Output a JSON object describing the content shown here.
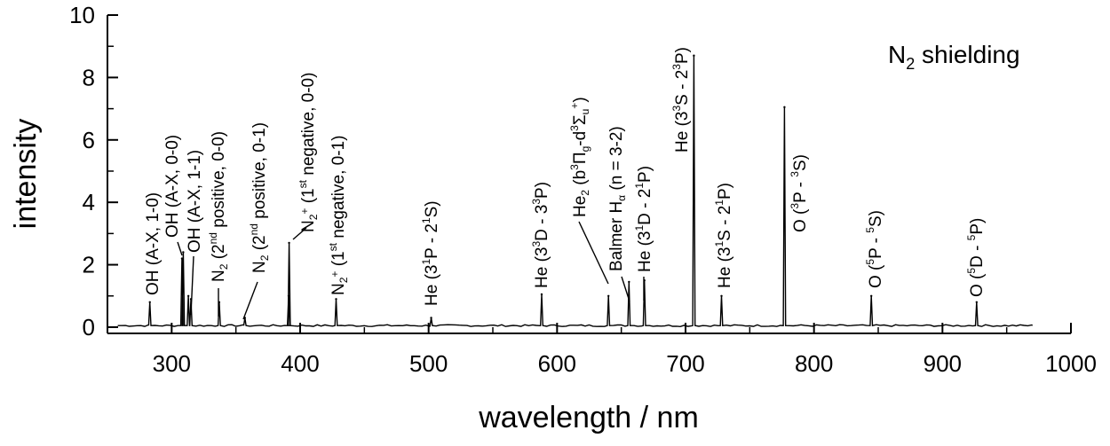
{
  "chart_data": {
    "type": "line",
    "title": "N2 shielding",
    "xlabel": "wavelength / nm",
    "ylabel": "intensity",
    "xlim": [
      250,
      1000
    ],
    "ylim": [
      -0.2,
      10
    ],
    "x_ticks": [
      300,
      400,
      500,
      600,
      700,
      800,
      900,
      1000
    ],
    "y_ticks": [
      0,
      2,
      4,
      6,
      8,
      10
    ],
    "grid": false,
    "baseline": 0.05,
    "x_range_measured": [
      258,
      970
    ],
    "series": [
      {
        "peaks": [
          {
            "x": 283,
            "y": 0.8
          },
          {
            "x": 308,
            "y": 2.2
          },
          {
            "x": 309,
            "y": 2.4
          },
          {
            "x": 313,
            "y": 1.0
          },
          {
            "x": 315,
            "y": 0.9
          },
          {
            "x": 337,
            "y": 0.8
          },
          {
            "x": 357,
            "y": 0.3
          },
          {
            "x": 391,
            "y": 1.0
          },
          {
            "x": 391.4,
            "y": 2.7
          },
          {
            "x": 428,
            "y": 0.9
          },
          {
            "x": 502,
            "y": 0.3
          },
          {
            "x": 588,
            "y": 1.05
          },
          {
            "x": 640,
            "y": 1.0
          },
          {
            "x": 656,
            "y": 1.45
          },
          {
            "x": 668,
            "y": 1.5
          },
          {
            "x": 706.5,
            "y": 8.7
          },
          {
            "x": 728,
            "y": 1.0
          },
          {
            "x": 777,
            "y": 7.05
          },
          {
            "x": 844.6,
            "y": 1.0
          },
          {
            "x": 926.6,
            "y": 0.8
          }
        ]
      }
    ]
  },
  "annotations": [
    {
      "id": "oh-a-x-1-0",
      "text": "OH (A-X, 1-0)"
    },
    {
      "id": "oh-a-x-0-0",
      "text": "OH (A-X, 0-0)"
    },
    {
      "id": "oh-a-x-1-1",
      "text": "OH (A-X, 1-1)"
    },
    {
      "id": "n2-2nd-0-0",
      "text": "N2 (2nd positive, 0-0)"
    },
    {
      "id": "n2-2nd-0-1",
      "text": "N2 (2nd positive, 0-1)"
    },
    {
      "id": "n2p-1st-0-0",
      "text": "N2+ (1st negative, 0-0)"
    },
    {
      "id": "n2p-1st-0-1",
      "text": "N2+ (1st negative, 0-1)"
    },
    {
      "id": "he-31p-21s",
      "text": "He (31P - 21S)"
    },
    {
      "id": "he-33d-33p",
      "text": "He (33D - 33P)"
    },
    {
      "id": "he2-band",
      "text": "He2 (b3Πg-d3Σu+)"
    },
    {
      "id": "balmer-ha",
      "text": "Balmer Hα (n = 3-2)"
    },
    {
      "id": "he-31d-21p",
      "text": "He (31D - 21P)"
    },
    {
      "id": "he-33s-23p",
      "text": "He (33S - 23P)"
    },
    {
      "id": "he-31s-21p",
      "text": "He (31S - 21P)"
    },
    {
      "id": "o-3p-3s",
      "text": "O (3P - 3S)"
    },
    {
      "id": "o-5p-5s",
      "text": "O (5P - 5S)"
    },
    {
      "id": "o-5d-5p",
      "text": "O (5D - 5P)"
    }
  ]
}
